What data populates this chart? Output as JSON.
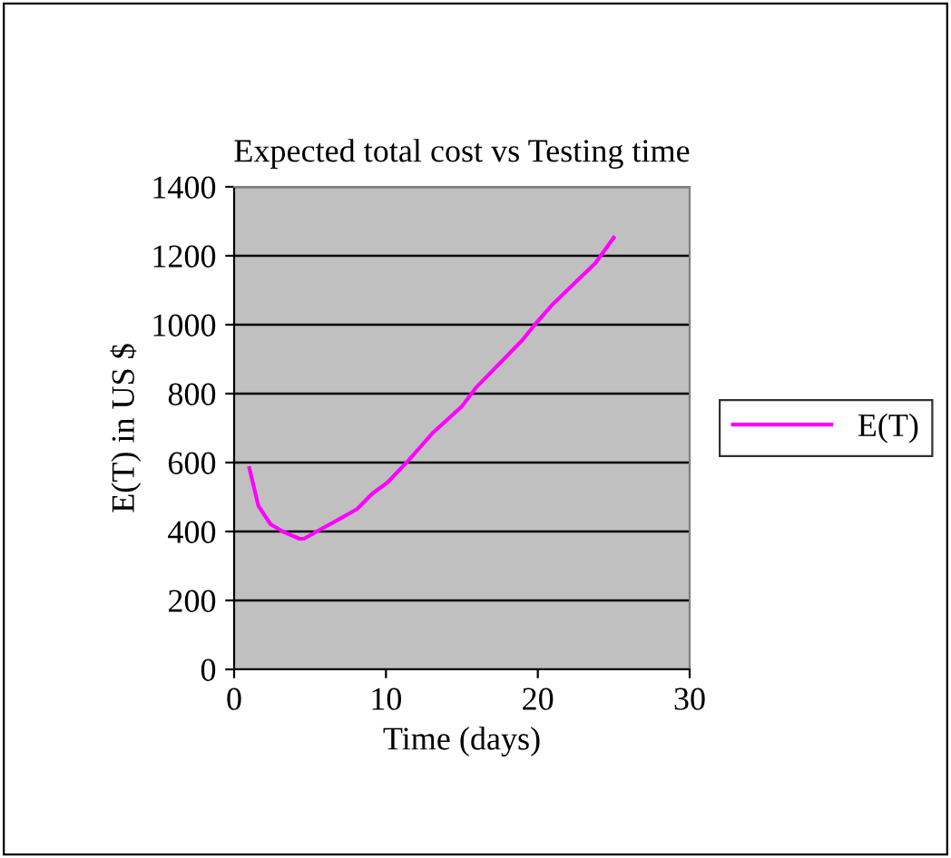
{
  "chart_data": {
    "type": "line",
    "title": "Expected total cost vs Testing time",
    "xlabel": "Time (days)",
    "ylabel": "E(T) in US $",
    "series": [
      {
        "name": "E(T)",
        "color": "#ff00ff",
        "x": [
          1,
          1.6,
          2.4,
          3.2,
          4.3,
          4.6,
          5.6,
          6.9,
          8.1,
          9.1,
          10.1,
          11.5,
          13.1,
          15,
          15.9,
          19,
          19.8,
          21,
          22.2,
          23.8,
          25
        ],
        "values": [
          584,
          474,
          421,
          400,
          379,
          379,
          404,
          435,
          465,
          510,
          542,
          607,
          687,
          763,
          816,
          956,
          1000,
          1060,
          1111,
          1179,
          1253
        ]
      }
    ],
    "xlim": [
      0,
      30
    ],
    "xticks": [
      0,
      10,
      20,
      30
    ],
    "ylim": [
      0,
      1400
    ],
    "yticks": [
      0,
      200,
      400,
      600,
      800,
      1000,
      1200,
      1400
    ],
    "grid": "y",
    "legend": "right",
    "marker": "none",
    "line_style": "solid"
  }
}
